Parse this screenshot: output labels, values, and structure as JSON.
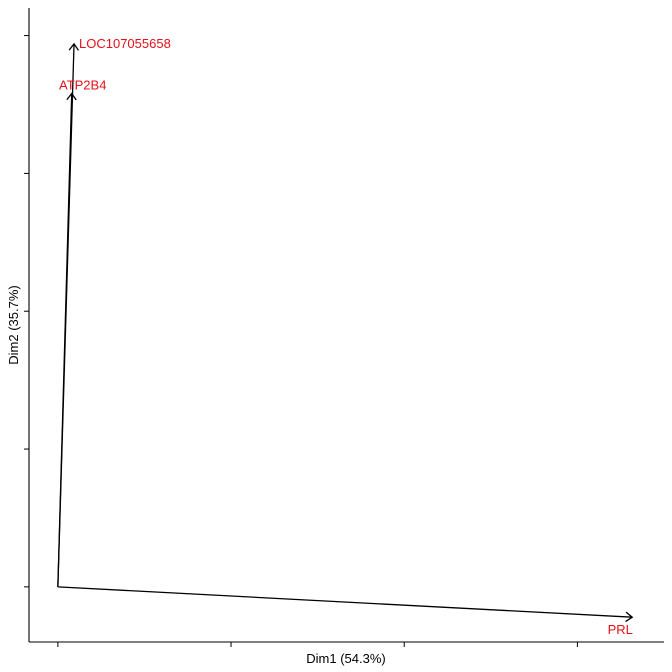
{
  "chart_data": {
    "type": "line",
    "title": "",
    "xlabel": "Dim1 (54.3%)",
    "ylabel": "Dim2 (35.7%)",
    "origin": {
      "x": 0,
      "y": 0
    },
    "xlim": [
      -0.05,
      1.05
    ],
    "ylim": [
      -0.1,
      1.05
    ],
    "x_ticks": [
      0,
      0.3,
      0.6,
      0.9
    ],
    "y_ticks": [
      0,
      0.25,
      0.5,
      0.75,
      1.0
    ],
    "show_tick_labels": false,
    "grid": false,
    "label_color": "#e8101a",
    "variables": [
      {
        "name": "LOC107055658",
        "x": 0.028,
        "y": 0.985
      },
      {
        "name": "ATP2B4",
        "x": 0.024,
        "y": 0.895
      },
      {
        "name": "PRL",
        "x": 0.995,
        "y": -0.055
      }
    ]
  }
}
